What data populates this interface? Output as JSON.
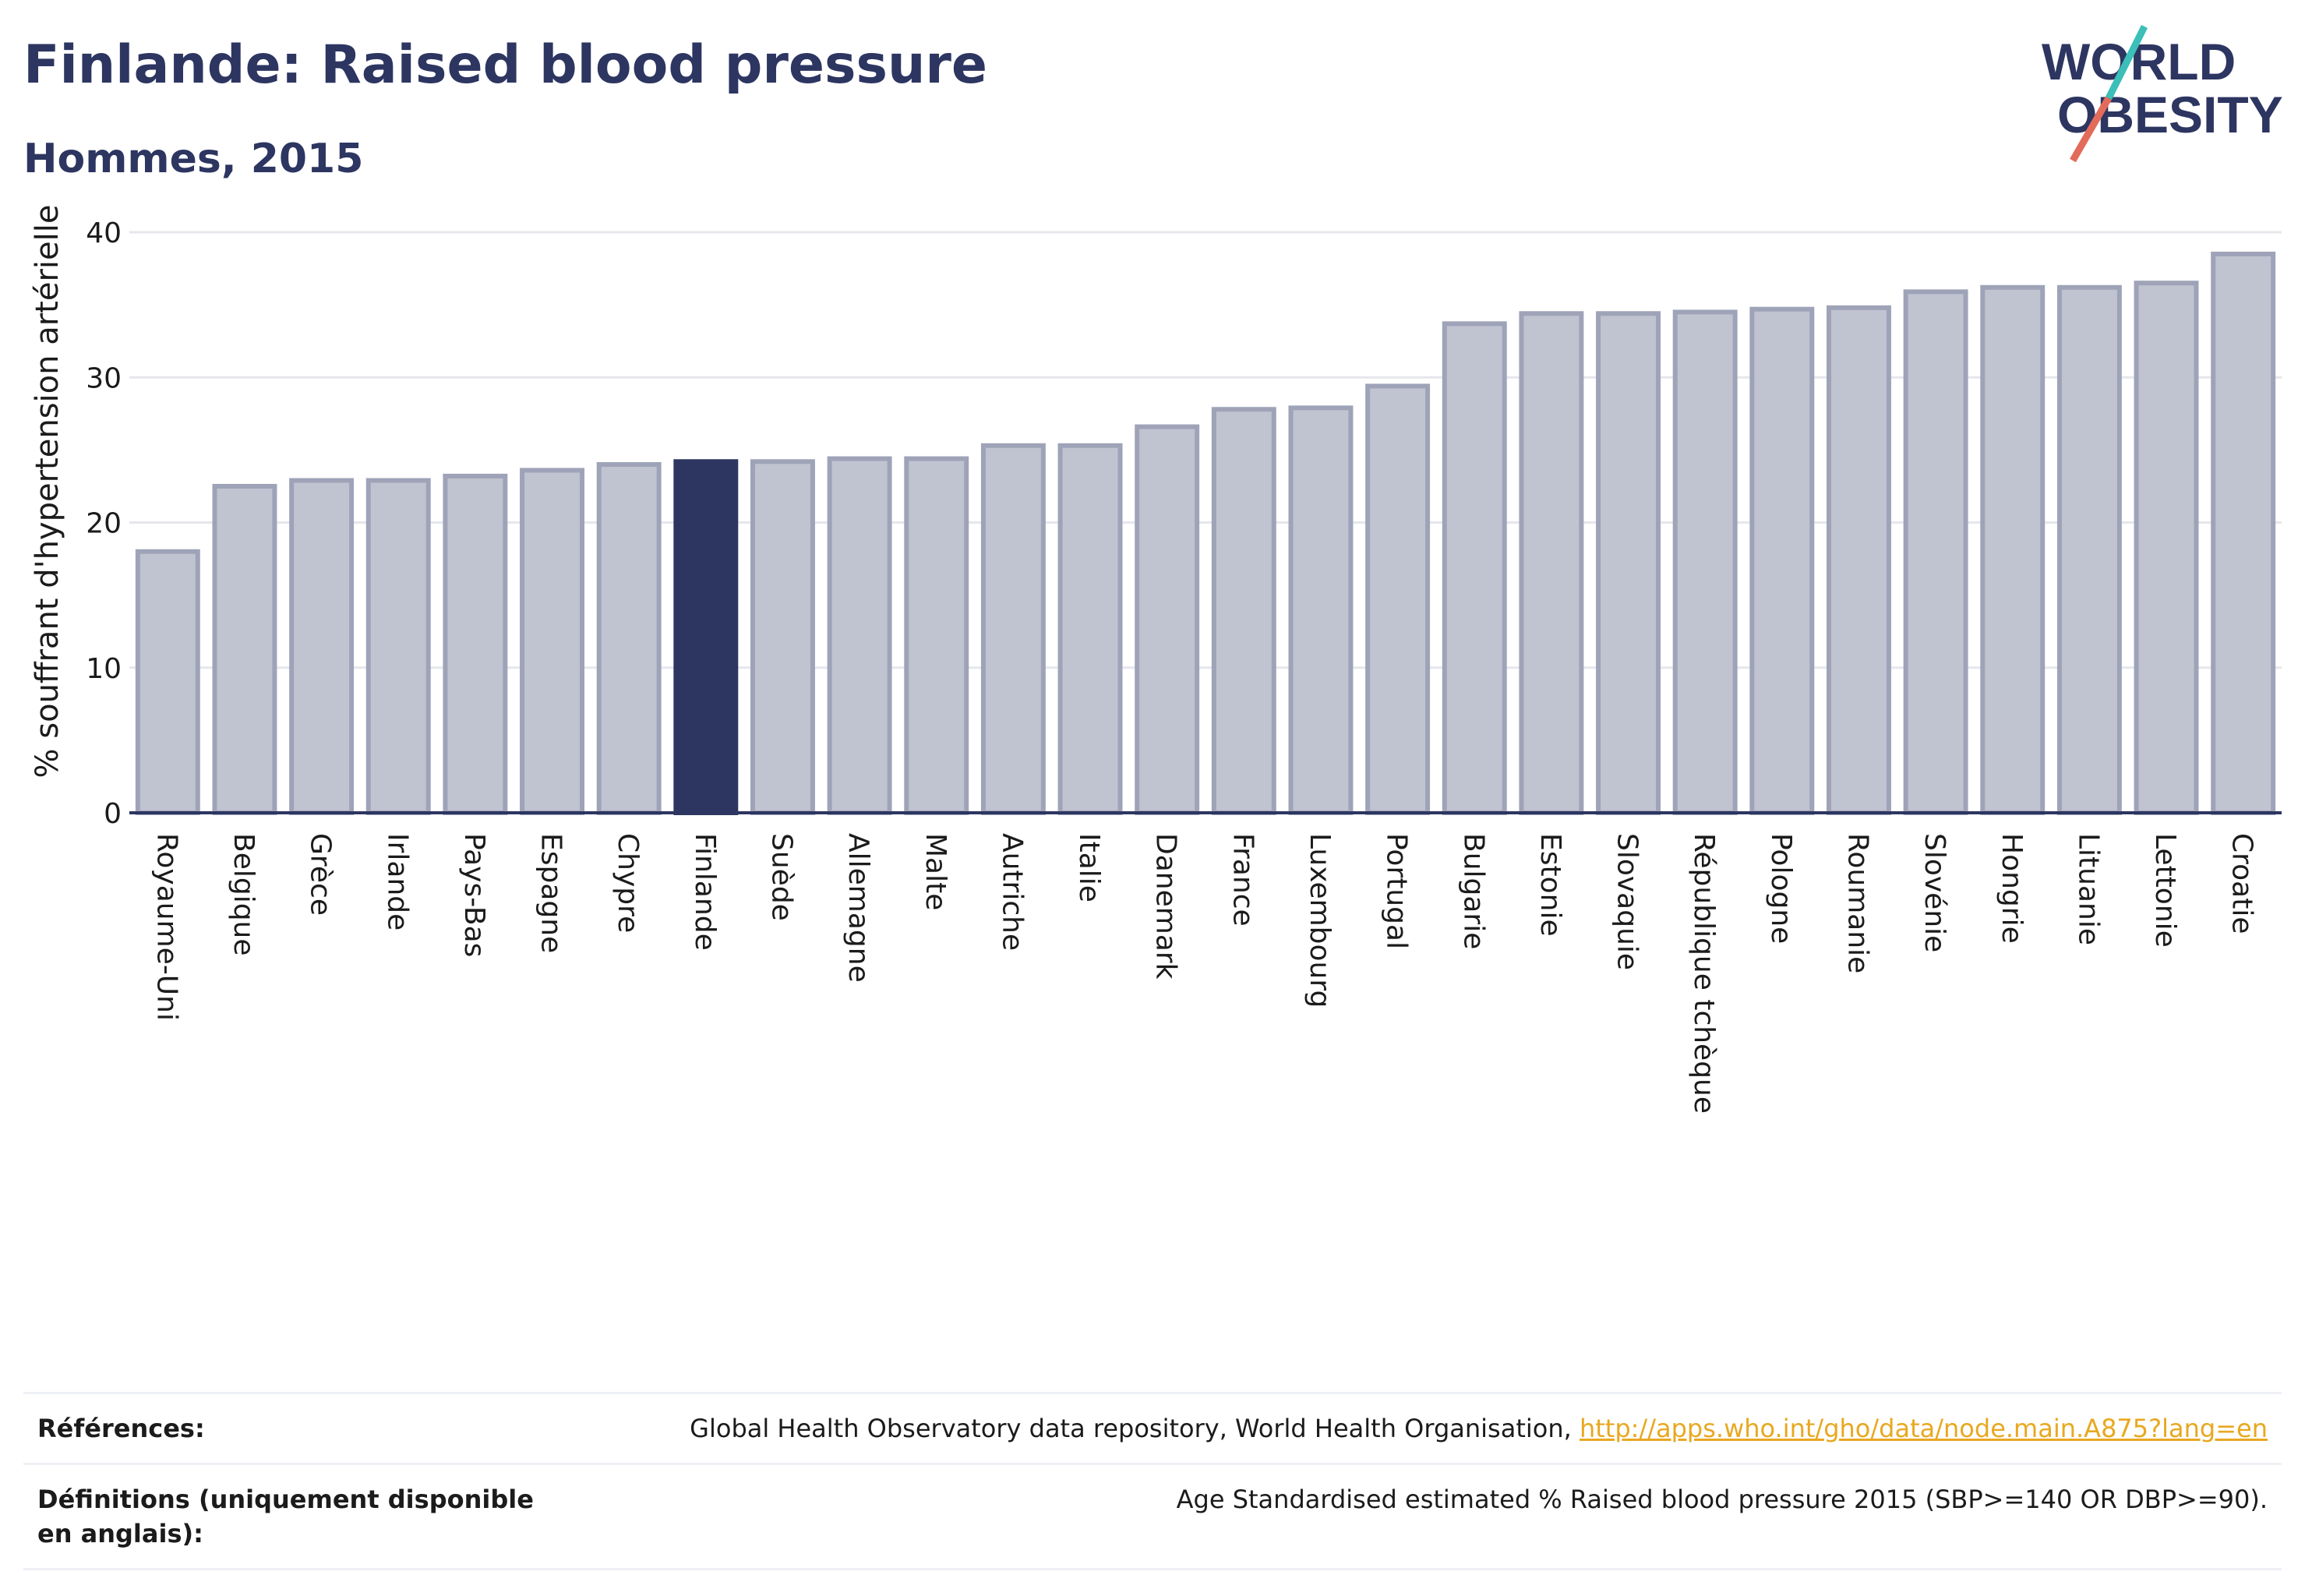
{
  "header": {
    "title": "Finlande: Raised blood pressure",
    "subtitle": "Hommes, 2015"
  },
  "logo": {
    "line1": "WORLD",
    "line2": "OBESITY",
    "colors": {
      "text": "#2d3561",
      "slash_top": "#3bbfb8",
      "slash_bottom": "#e36b5a"
    }
  },
  "colors": {
    "bar": "#c0c3d0",
    "bar_border": "#9ea3b8",
    "highlight": "#2d3561",
    "grid": "#e6e7ec",
    "axis": "#2d3561",
    "link": "#e8a820"
  },
  "chart_data": {
    "type": "bar",
    "title": "Finlande: Raised blood pressure",
    "subtitle": "Hommes, 2015",
    "xlabel": "",
    "ylabel": "% souffrant d'hypertension artérielle",
    "ylim": [
      0,
      40
    ],
    "yticks": [
      0,
      10,
      20,
      30,
      40
    ],
    "grid": true,
    "highlight": "Finlande",
    "categories": [
      "Royaume-Uni",
      "Belgique",
      "Grèce",
      "Irlande",
      "Pays-Bas",
      "Espagne",
      "Chypre",
      "Finlande",
      "Suède",
      "Allemagne",
      "Malte",
      "Autriche",
      "Italie",
      "Danemark",
      "France",
      "Luxembourg",
      "Portugal",
      "Bulgarie",
      "Estonie",
      "Slovaquie",
      "République tchèque",
      "Pologne",
      "Roumanie",
      "Slovénie",
      "Hongrie",
      "Lituanie",
      "Lettonie",
      "Croatie"
    ],
    "values": [
      18.0,
      22.5,
      22.9,
      22.9,
      23.2,
      23.6,
      24.0,
      24.2,
      24.2,
      24.4,
      24.4,
      25.3,
      25.3,
      26.6,
      27.8,
      27.9,
      29.4,
      33.7,
      34.4,
      34.4,
      34.5,
      34.7,
      34.8,
      35.9,
      36.2,
      36.2,
      36.5,
      38.5
    ]
  },
  "references": {
    "ref_label": "Références:",
    "ref_text": "Global Health Observatory data repository, World Health Organisation, ",
    "ref_link": "http://apps.who.int/gho/data/node.main.A875?lang=en",
    "def_label": "Définitions (uniquement disponible en anglais):",
    "def_text": "Age Standardised estimated % Raised blood pressure 2015 (SBP>=140 OR DBP>=90)."
  }
}
